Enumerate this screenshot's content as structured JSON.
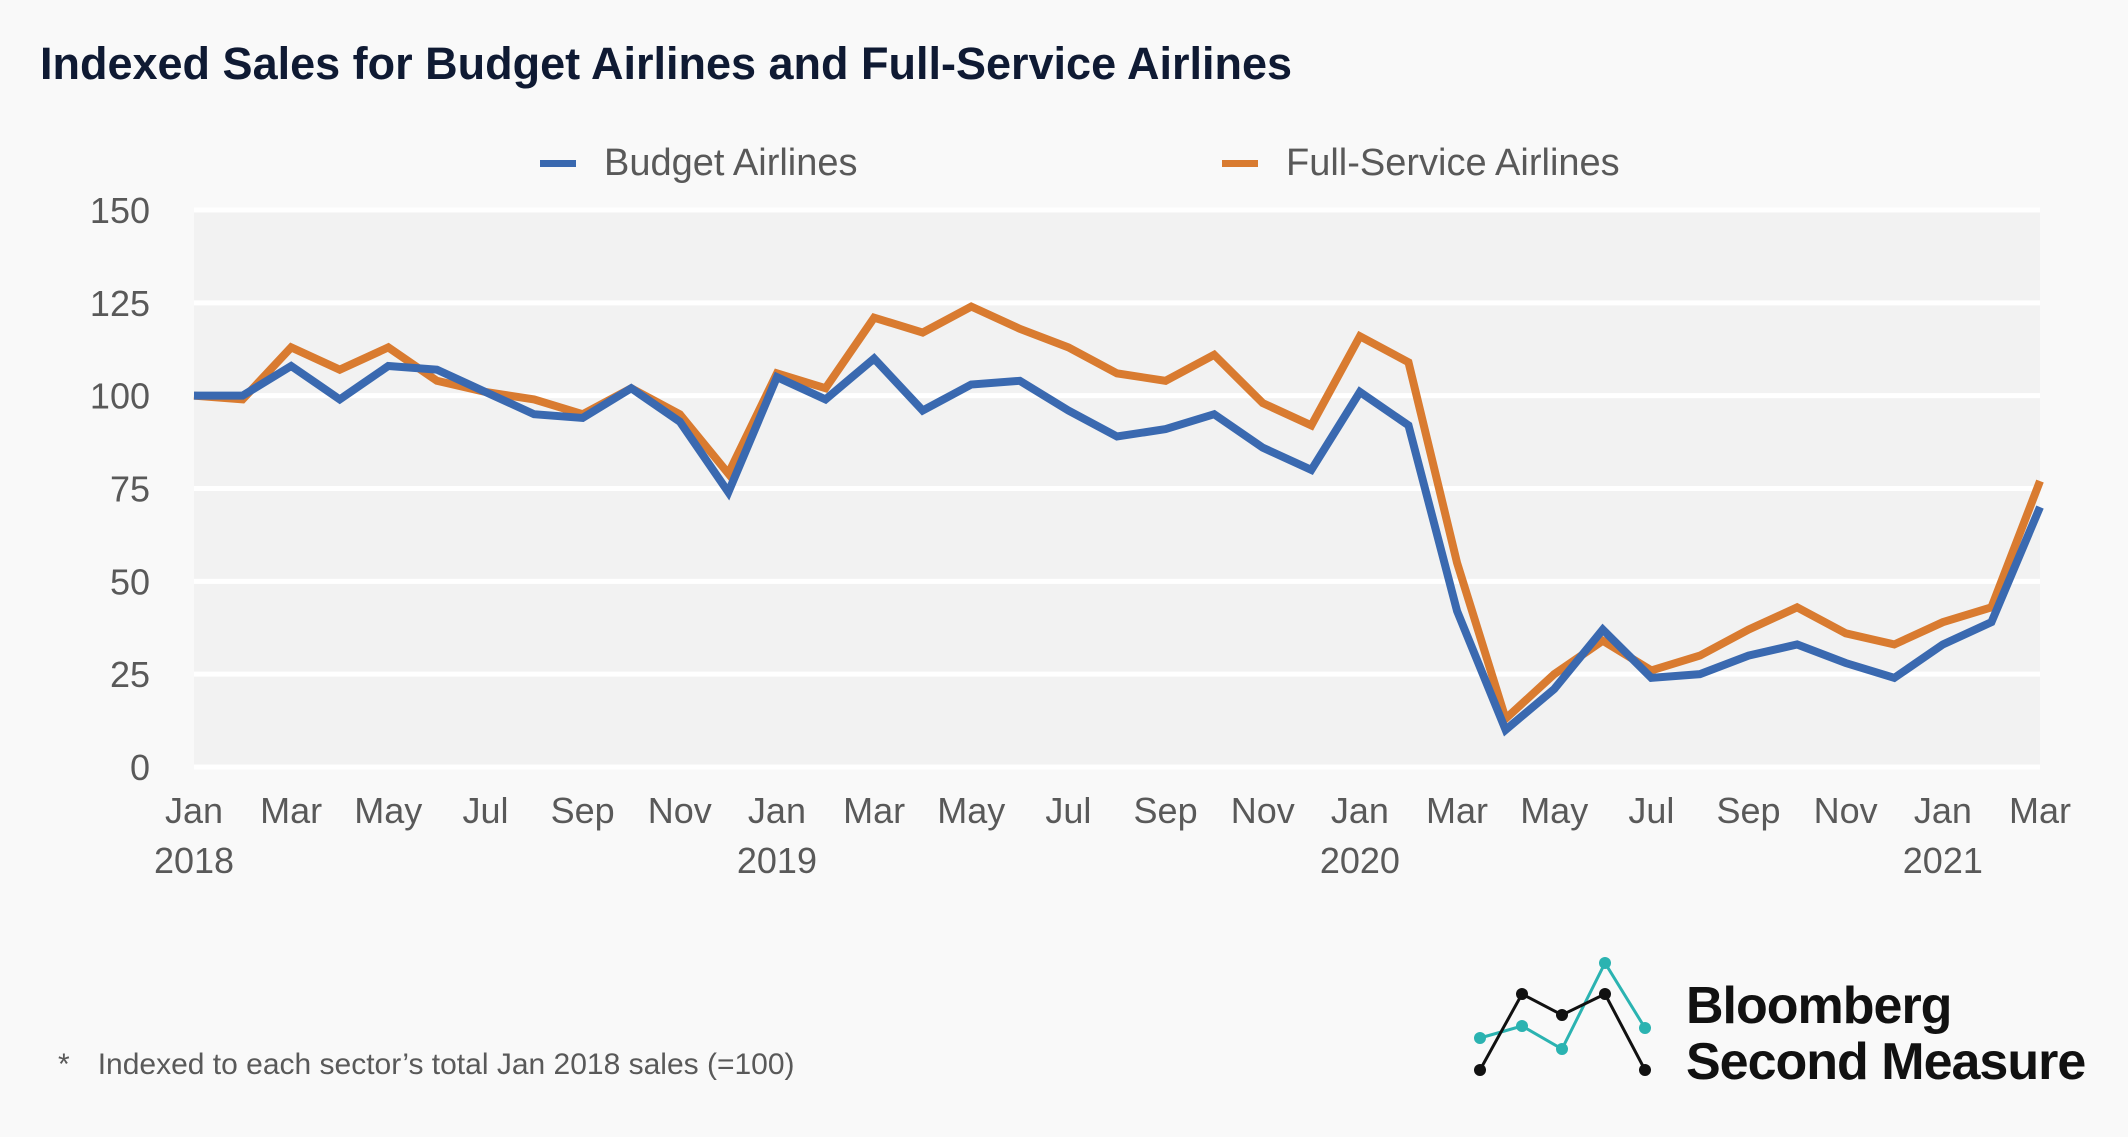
{
  "chart_data": {
    "type": "line",
    "title": "Indexed Sales for Budget Airlines and Full-Service Airlines",
    "xlabel": "",
    "ylabel": "",
    "ylim": [
      0,
      150
    ],
    "yticks": [
      "0",
      "25",
      "50",
      "75",
      "100",
      "125",
      "150"
    ],
    "grid": true,
    "legend_position": "top",
    "x": [
      "Jan 2018",
      "Feb 2018",
      "Mar 2018",
      "Apr 2018",
      "May 2018",
      "Jun 2018",
      "Jul 2018",
      "Aug 2018",
      "Sep 2018",
      "Oct 2018",
      "Nov 2018",
      "Dec 2018",
      "Jan 2019",
      "Feb 2019",
      "Mar 2019",
      "Apr 2019",
      "May 2019",
      "Jun 2019",
      "Jul 2019",
      "Aug 2019",
      "Sep 2019",
      "Oct 2019",
      "Nov 2019",
      "Dec 2019",
      "Jan 2020",
      "Feb 2020",
      "Mar 2020",
      "Apr 2020",
      "May 2020",
      "Jun 2020",
      "Jul 2020",
      "Aug 2020",
      "Sep 2020",
      "Oct 2020",
      "Nov 2020",
      "Dec 2020",
      "Jan 2021",
      "Feb 2021",
      "Mar 2021"
    ],
    "xtick_labels": [
      {
        "month": "Jan",
        "year": "2018"
      },
      {
        "month": "Mar",
        "year": ""
      },
      {
        "month": "May",
        "year": ""
      },
      {
        "month": "Jul",
        "year": ""
      },
      {
        "month": "Sep",
        "year": ""
      },
      {
        "month": "Nov",
        "year": ""
      },
      {
        "month": "Jan",
        "year": "2019"
      },
      {
        "month": "Mar",
        "year": ""
      },
      {
        "month": "May",
        "year": ""
      },
      {
        "month": "Jul",
        "year": ""
      },
      {
        "month": "Sep",
        "year": ""
      },
      {
        "month": "Nov",
        "year": ""
      },
      {
        "month": "Jan",
        "year": "2020"
      },
      {
        "month": "Mar",
        "year": ""
      },
      {
        "month": "May",
        "year": ""
      },
      {
        "month": "Jul",
        "year": ""
      },
      {
        "month": "Sep",
        "year": ""
      },
      {
        "month": "Nov",
        "year": ""
      },
      {
        "month": "Jan",
        "year": "2021"
      },
      {
        "month": "Mar",
        "year": ""
      }
    ],
    "series": [
      {
        "name": "Budget Airlines",
        "color": "#3a69b0",
        "values": [
          100,
          100,
          108,
          99,
          108,
          107,
          101,
          95,
          94,
          102,
          93,
          74,
          105,
          99,
          110,
          96,
          103,
          104,
          96,
          89,
          91,
          95,
          86,
          80,
          101,
          92,
          42,
          10,
          21,
          37,
          24,
          25,
          30,
          33,
          28,
          24,
          33,
          39,
          70
        ]
      },
      {
        "name": "Full-Service Airlines",
        "color": "#d97b30",
        "values": [
          100,
          99,
          113,
          107,
          113,
          104,
          101,
          99,
          95,
          102,
          95,
          79,
          106,
          102,
          121,
          117,
          124,
          118,
          113,
          106,
          104,
          111,
          98,
          92,
          116,
          109,
          55,
          13,
          25,
          34,
          26,
          30,
          37,
          43,
          36,
          33,
          39,
          43,
          77
        ]
      }
    ]
  },
  "footnote": {
    "marker": "*",
    "text": "Indexed to each sector’s total Jan 2018 sales (=100)"
  },
  "logo": {
    "line1": "Bloomberg",
    "line2": "Second Measure",
    "colors": {
      "teal": "#2bb3b1",
      "black": "#111111"
    }
  }
}
